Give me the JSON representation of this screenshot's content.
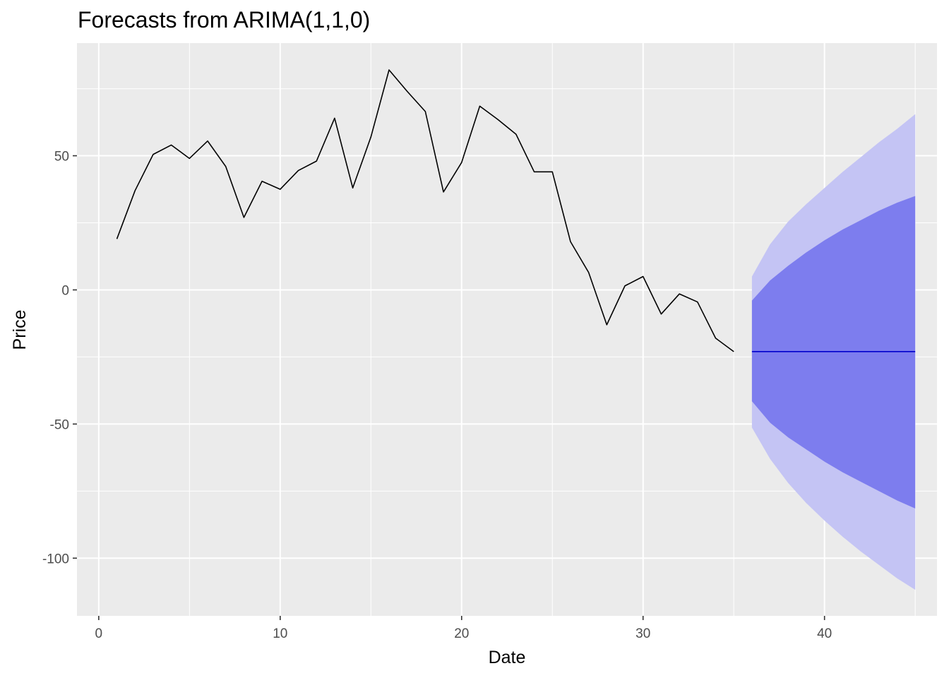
{
  "chart_data": {
    "type": "line",
    "title": "Forecasts from ARIMA(1,1,0)",
    "xlabel": "Date",
    "ylabel": "Price",
    "xlim": [
      -1.2,
      46.2
    ],
    "ylim": [
      -121.5,
      92
    ],
    "x_ticks": [
      0,
      10,
      20,
      30,
      40
    ],
    "x_tick_labels": [
      "0",
      "10",
      "20",
      "30",
      "40"
    ],
    "y_ticks": [
      -100,
      -50,
      0,
      50
    ],
    "y_tick_labels": [
      "-100",
      "-50",
      "0",
      "50"
    ],
    "grid": true,
    "background": "#ebebeb",
    "series": [
      {
        "role": "observed",
        "color": "#000000",
        "x": [
          1,
          2,
          3,
          4,
          5,
          6,
          7,
          8,
          9,
          10,
          11,
          12,
          13,
          14,
          15,
          16,
          17,
          18,
          19,
          20,
          21,
          22,
          23,
          24,
          25,
          26,
          27,
          28,
          29,
          30,
          31,
          32,
          33,
          34,
          35
        ],
        "y": [
          19,
          37,
          50.5,
          54,
          49,
          55.5,
          46,
          27,
          40.5,
          37.5,
          44.5,
          48,
          64,
          38,
          57,
          82,
          74,
          66.5,
          36.5,
          47.5,
          68.5,
          63.5,
          58,
          44,
          44,
          18,
          6.5,
          -13,
          1.5,
          5,
          -9,
          -1.5,
          -4.5,
          -18,
          -23
        ]
      },
      {
        "role": "forecast",
        "color": "#0000cc",
        "x": [
          36,
          37,
          38,
          39,
          40,
          41,
          42,
          43,
          44,
          45
        ],
        "y": [
          -23,
          -23,
          -23,
          -23,
          -23,
          -23,
          -23,
          -23,
          -23,
          -23
        ]
      }
    ],
    "intervals": [
      {
        "level": 95,
        "color": "#c4c4f4",
        "x": [
          36,
          37,
          38,
          39,
          40,
          41,
          42,
          43,
          44,
          45
        ],
        "lower": [
          -51.3,
          -63,
          -72,
          -79.5,
          -86,
          -92,
          -97.5,
          -102.5,
          -107.5,
          -111.8
        ],
        "upper": [
          5,
          17,
          25.5,
          32,
          38,
          44,
          49.5,
          55,
          60,
          65.5
        ]
      },
      {
        "level": 80,
        "color": "#7d7dee",
        "x": [
          36,
          37,
          38,
          39,
          40,
          41,
          42,
          43,
          44,
          45
        ],
        "lower": [
          -41.5,
          -49.5,
          -55,
          -59.5,
          -64,
          -68,
          -71.5,
          -75,
          -78.5,
          -81.5
        ],
        "upper": [
          -4,
          3.5,
          9,
          14,
          18.5,
          22.5,
          26,
          29.5,
          32.5,
          35
        ]
      }
    ]
  }
}
